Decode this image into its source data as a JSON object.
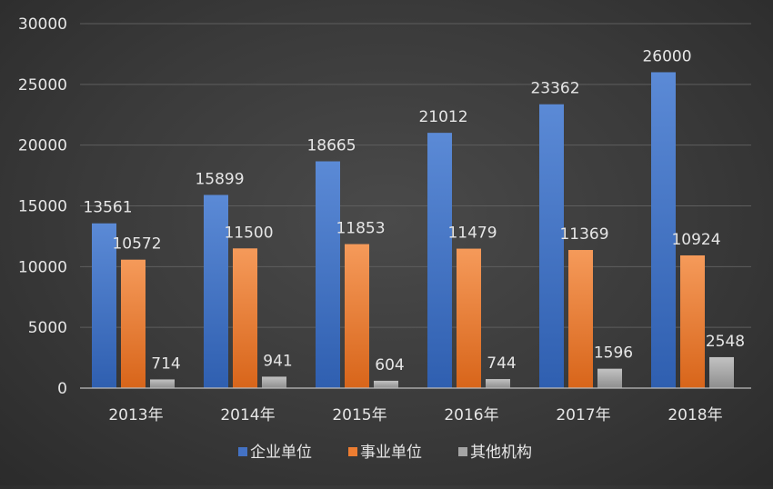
{
  "chart_data": {
    "type": "bar",
    "title": "",
    "xlabel": "",
    "ylabel": "",
    "categories": [
      "2013年",
      "2014年",
      "2015年",
      "2016年",
      "2017年",
      "2018年"
    ],
    "series": [
      {
        "name": "企业单位",
        "color": "#4472C4",
        "values": [
          13561,
          15899,
          18665,
          21012,
          23362,
          26000
        ]
      },
      {
        "name": "事业单位",
        "color": "#ED7D31",
        "values": [
          10572,
          11500,
          11853,
          11479,
          11369,
          10924
        ]
      },
      {
        "name": "其他机构",
        "color": "#A5A5A5",
        "values": [
          714,
          941,
          604,
          744,
          1596,
          2548
        ]
      }
    ],
    "ylim": [
      0,
      30000
    ],
    "yticks": [
      0,
      5000,
      10000,
      15000,
      20000,
      25000,
      30000
    ],
    "grid": true,
    "legend": "bottom",
    "data_labels": true
  }
}
